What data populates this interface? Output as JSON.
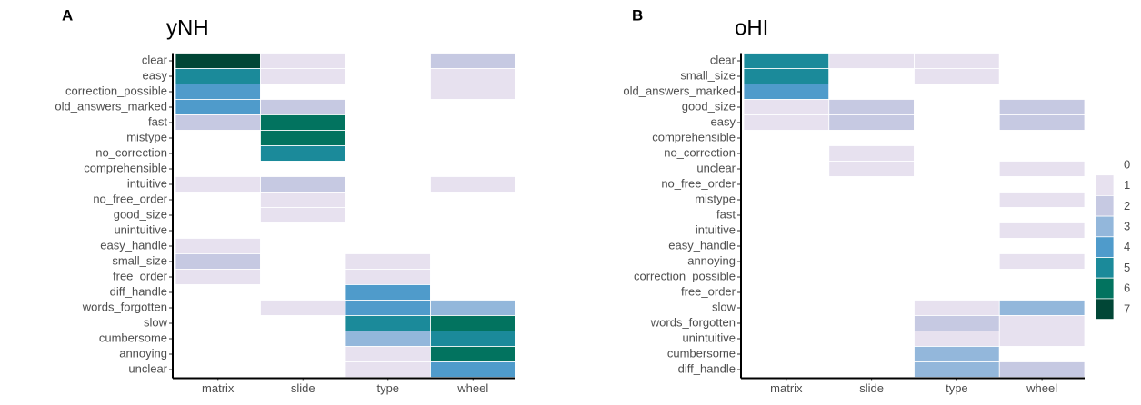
{
  "chart_data": [
    {
      "type": "heatmap",
      "panel": "A",
      "title": "yNH",
      "x": [
        "matrix",
        "slide",
        "type",
        "wheel"
      ],
      "y": [
        "clear",
        "easy",
        "correction_possible",
        "old_answers_marked",
        "fast",
        "mistype",
        "no_correction",
        "comprehensible",
        "intuitive",
        "no_free_order",
        "good_size",
        "unintuitive",
        "easy_handle",
        "small_size",
        "free_order",
        "diff_handle",
        "words_forgotten",
        "slow",
        "cumbersome",
        "annoying",
        "unclear"
      ],
      "values": [
        [
          7,
          1,
          0,
          2
        ],
        [
          5,
          1,
          0,
          1
        ],
        [
          4,
          0,
          0,
          1
        ],
        [
          4,
          2,
          0,
          0
        ],
        [
          2,
          6,
          0,
          0
        ],
        [
          0,
          6,
          0,
          0
        ],
        [
          0,
          5,
          0,
          0
        ],
        [
          0,
          0,
          0,
          0
        ],
        [
          1,
          2,
          0,
          1
        ],
        [
          0,
          1,
          0,
          0
        ],
        [
          0,
          1,
          0,
          0
        ],
        [
          0,
          0,
          0,
          0
        ],
        [
          1,
          0,
          0,
          0
        ],
        [
          2,
          0,
          1,
          0
        ],
        [
          1,
          0,
          1,
          0
        ],
        [
          0,
          0,
          4,
          0
        ],
        [
          0,
          1,
          4,
          3
        ],
        [
          0,
          0,
          5,
          6
        ],
        [
          0,
          0,
          3,
          5
        ],
        [
          0,
          0,
          1,
          6
        ],
        [
          0,
          0,
          1,
          4
        ]
      ]
    },
    {
      "type": "heatmap",
      "panel": "B",
      "title": "oHI",
      "x": [
        "matrix",
        "slide",
        "type",
        "wheel"
      ],
      "y": [
        "clear",
        "small_size",
        "old_answers_marked",
        "good_size",
        "easy",
        "comprehensible",
        "no_correction",
        "unclear",
        "no_free_order",
        "mistype",
        "fast",
        "intuitive",
        "easy_handle",
        "annoying",
        "correction_possible",
        "free_order",
        "slow",
        "words_forgotten",
        "unintuitive",
        "cumbersome",
        "diff_handle"
      ],
      "values": [
        [
          5,
          1,
          1,
          0
        ],
        [
          5,
          0,
          1,
          0
        ],
        [
          4,
          0,
          0,
          0
        ],
        [
          1,
          2,
          0,
          2
        ],
        [
          1,
          2,
          0,
          2
        ],
        [
          0,
          0,
          0,
          0
        ],
        [
          0,
          1,
          0,
          0
        ],
        [
          0,
          1,
          0,
          1
        ],
        [
          0,
          0,
          0,
          0
        ],
        [
          0,
          0,
          0,
          1
        ],
        [
          0,
          0,
          0,
          0
        ],
        [
          0,
          0,
          0,
          1
        ],
        [
          0,
          0,
          0,
          0
        ],
        [
          0,
          0,
          0,
          1
        ],
        [
          0,
          0,
          0,
          0
        ],
        [
          0,
          0,
          0,
          0
        ],
        [
          0,
          0,
          1,
          3
        ],
        [
          0,
          0,
          2,
          1
        ],
        [
          0,
          0,
          1,
          1
        ],
        [
          0,
          0,
          3,
          0
        ],
        [
          0,
          0,
          3,
          2
        ]
      ]
    }
  ],
  "legend": {
    "values": [
      0,
      1,
      2,
      3,
      4,
      5,
      6,
      7
    ],
    "colors": [
      "#ffffff",
      "#e7e1ef",
      "#c6c9e2",
      "#93b7db",
      "#4f9bcb",
      "#1b8a9a",
      "#02735f",
      "#014636"
    ]
  }
}
